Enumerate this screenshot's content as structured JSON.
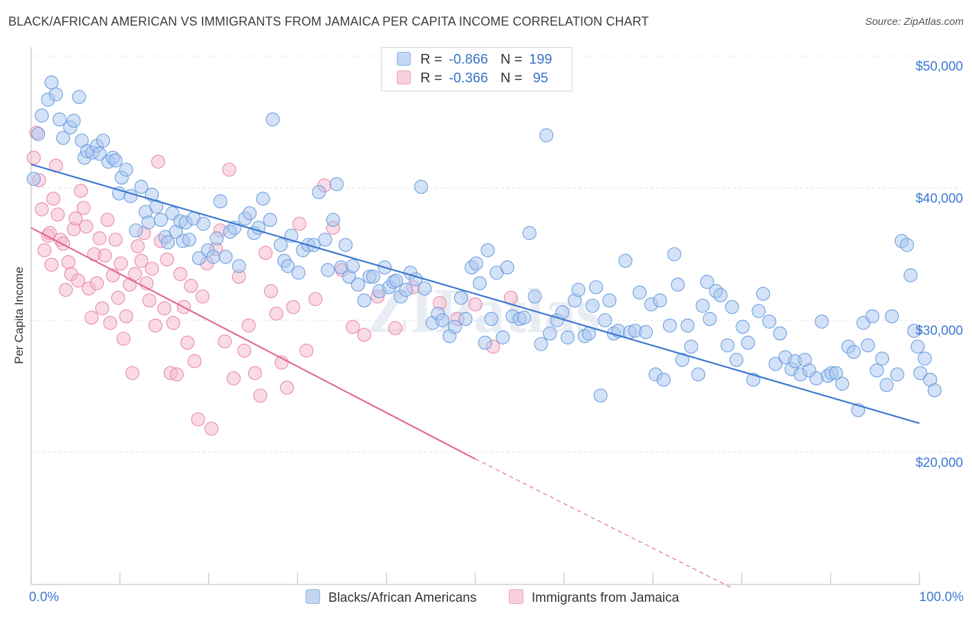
{
  "title": "BLACK/AFRICAN AMERICAN VS IMMIGRANTS FROM JAMAICA PER CAPITA INCOME CORRELATION CHART",
  "source": "Source: ZipAtlas.com",
  "watermark": "ZIPatlas",
  "legend": {
    "rows": [
      {
        "r_label": "R =",
        "r_value": "-0.866",
        "n_label": "N =",
        "n_value": "199",
        "color": "#a9c6ef"
      },
      {
        "r_label": "R =",
        "r_value": "-0.366",
        "n_label": "N =",
        "n_value": " 95",
        "color": "#f6b8cb"
      }
    ]
  },
  "chart_data": {
    "type": "scatter",
    "title": "BLACK/AFRICAN AMERICAN VS IMMIGRANTS FROM JAMAICA PER CAPITA INCOME CORRELATION CHART",
    "xlabel": "",
    "ylabel": "Per Capita Income",
    "xlim": [
      0,
      100
    ],
    "ylim": [
      10000,
      51000
    ],
    "x_tick_labels": [
      "0.0%",
      "100.0%"
    ],
    "y_ticks": [
      20000,
      30000,
      40000,
      50000
    ],
    "y_tick_labels": [
      "$20,000",
      "$30,000",
      "$40,000",
      "$50,000"
    ],
    "grid": true,
    "legend_position": "bottom",
    "series": [
      {
        "name": "Blacks/African Americans",
        "color": "#a9c6ef",
        "edge_color": "#6a9ee0",
        "trend": {
          "x": [
            0,
            100
          ],
          "y": [
            41800,
            22200
          ],
          "color": "#3a77d0"
        },
        "points": [
          [
            0.3,
            40700
          ],
          [
            0.8,
            44100
          ],
          [
            1.2,
            45500
          ],
          [
            1.9,
            46700
          ],
          [
            2.3,
            48000
          ],
          [
            2.8,
            47100
          ],
          [
            3.2,
            45200
          ],
          [
            3.6,
            43800
          ],
          [
            4.4,
            44600
          ],
          [
            4.8,
            45100
          ],
          [
            5.4,
            46900
          ],
          [
            5.7,
            43600
          ],
          [
            6.0,
            42300
          ],
          [
            6.3,
            42800
          ],
          [
            6.9,
            42700
          ],
          [
            7.4,
            43200
          ],
          [
            7.7,
            42600
          ],
          [
            8.1,
            43600
          ],
          [
            8.7,
            42000
          ],
          [
            9.2,
            42300
          ],
          [
            9.5,
            42100
          ],
          [
            9.9,
            39600
          ],
          [
            10.2,
            40800
          ],
          [
            10.7,
            41400
          ],
          [
            11.2,
            39400
          ],
          [
            11.8,
            36800
          ],
          [
            12.4,
            40100
          ],
          [
            12.9,
            38200
          ],
          [
            13.2,
            37400
          ],
          [
            13.6,
            39500
          ],
          [
            14.1,
            38600
          ],
          [
            14.6,
            37600
          ],
          [
            15.1,
            36300
          ],
          [
            15.4,
            35900
          ],
          [
            15.9,
            38100
          ],
          [
            16.3,
            36700
          ],
          [
            16.8,
            37500
          ],
          [
            17.1,
            36000
          ],
          [
            17.4,
            37400
          ],
          [
            17.8,
            36100
          ],
          [
            18.3,
            37700
          ],
          [
            18.9,
            34700
          ],
          [
            19.4,
            37300
          ],
          [
            19.9,
            35300
          ],
          [
            20.5,
            34800
          ],
          [
            20.9,
            36200
          ],
          [
            21.3,
            39000
          ],
          [
            21.9,
            34800
          ],
          [
            22.4,
            36700
          ],
          [
            22.9,
            37000
          ],
          [
            23.4,
            34100
          ],
          [
            24.1,
            37700
          ],
          [
            24.6,
            38100
          ],
          [
            25.1,
            36600
          ],
          [
            25.6,
            37000
          ],
          [
            26.1,
            39200
          ],
          [
            26.9,
            37600
          ],
          [
            27.2,
            45200
          ],
          [
            28.1,
            35700
          ],
          [
            28.5,
            34500
          ],
          [
            28.9,
            34100
          ],
          [
            29.3,
            36400
          ],
          [
            30.1,
            33600
          ],
          [
            30.6,
            35300
          ],
          [
            31.2,
            35700
          ],
          [
            31.8,
            35700
          ],
          [
            32.4,
            39700
          ],
          [
            33.1,
            36100
          ],
          [
            33.4,
            33800
          ],
          [
            34.0,
            37600
          ],
          [
            34.4,
            40300
          ],
          [
            34.9,
            34000
          ],
          [
            35.4,
            35700
          ],
          [
            35.8,
            33300
          ],
          [
            36.2,
            34100
          ],
          [
            36.8,
            32700
          ],
          [
            37.5,
            31500
          ],
          [
            38.1,
            33300
          ],
          [
            38.5,
            33300
          ],
          [
            39.2,
            32200
          ],
          [
            39.8,
            34000
          ],
          [
            40.3,
            32500
          ],
          [
            40.8,
            32900
          ],
          [
            41.1,
            33000
          ],
          [
            41.6,
            31800
          ],
          [
            42.2,
            32300
          ],
          [
            42.7,
            33600
          ],
          [
            43.3,
            33100
          ],
          [
            43.9,
            40100
          ],
          [
            44.3,
            32400
          ],
          [
            45.2,
            29800
          ],
          [
            45.8,
            30500
          ],
          [
            46.3,
            30000
          ],
          [
            47.1,
            28800
          ],
          [
            47.7,
            29500
          ],
          [
            48.4,
            31700
          ],
          [
            48.9,
            30100
          ],
          [
            49.6,
            34000
          ],
          [
            50.1,
            34300
          ],
          [
            50.5,
            32800
          ],
          [
            51.1,
            28300
          ],
          [
            51.4,
            35300
          ],
          [
            51.8,
            30100
          ],
          [
            52.4,
            33600
          ],
          [
            53.1,
            28700
          ],
          [
            53.6,
            34000
          ],
          [
            54.2,
            30300
          ],
          [
            55.0,
            30100
          ],
          [
            55.5,
            30200
          ],
          [
            56.1,
            36600
          ],
          [
            56.7,
            31800
          ],
          [
            57.4,
            28200
          ],
          [
            58.0,
            44000
          ],
          [
            58.4,
            29000
          ],
          [
            59.2,
            30000
          ],
          [
            59.8,
            30600
          ],
          [
            60.4,
            28700
          ],
          [
            61.2,
            31500
          ],
          [
            61.6,
            32300
          ],
          [
            62.3,
            28800
          ],
          [
            62.8,
            29000
          ],
          [
            63.2,
            31100
          ],
          [
            63.6,
            32500
          ],
          [
            64.1,
            24300
          ],
          [
            64.6,
            30000
          ],
          [
            65.1,
            31500
          ],
          [
            65.6,
            29000
          ],
          [
            66.1,
            29200
          ],
          [
            66.9,
            34500
          ],
          [
            67.4,
            29100
          ],
          [
            68.0,
            29200
          ],
          [
            68.5,
            32100
          ],
          [
            69.2,
            29100
          ],
          [
            69.8,
            31200
          ],
          [
            70.3,
            25900
          ],
          [
            70.8,
            31500
          ],
          [
            71.2,
            25500
          ],
          [
            71.9,
            29600
          ],
          [
            72.4,
            35000
          ],
          [
            72.8,
            32700
          ],
          [
            73.3,
            27000
          ],
          [
            73.9,
            29600
          ],
          [
            74.3,
            28000
          ],
          [
            75.1,
            25900
          ],
          [
            75.6,
            31100
          ],
          [
            76.1,
            32900
          ],
          [
            76.4,
            30100
          ],
          [
            77.1,
            32200
          ],
          [
            77.6,
            31900
          ],
          [
            78.4,
            28100
          ],
          [
            78.9,
            31000
          ],
          [
            79.4,
            27000
          ],
          [
            80.1,
            29500
          ],
          [
            80.7,
            28300
          ],
          [
            81.3,
            25500
          ],
          [
            81.9,
            30700
          ],
          [
            82.4,
            32000
          ],
          [
            83.1,
            29900
          ],
          [
            83.8,
            26700
          ],
          [
            84.3,
            29000
          ],
          [
            84.9,
            27200
          ],
          [
            85.6,
            26300
          ],
          [
            86.0,
            26900
          ],
          [
            86.6,
            25900
          ],
          [
            87.1,
            27000
          ],
          [
            87.6,
            26200
          ],
          [
            88.4,
            25600
          ],
          [
            89.0,
            29900
          ],
          [
            89.7,
            25800
          ],
          [
            90.1,
            26000
          ],
          [
            90.6,
            26000
          ],
          [
            91.3,
            25200
          ],
          [
            92.0,
            28000
          ],
          [
            92.6,
            27600
          ],
          [
            93.1,
            23200
          ],
          [
            93.7,
            29800
          ],
          [
            94.2,
            28100
          ],
          [
            94.7,
            30300
          ],
          [
            95.2,
            26200
          ],
          [
            95.8,
            27100
          ],
          [
            96.3,
            25100
          ],
          [
            96.9,
            30300
          ],
          [
            97.5,
            25900
          ],
          [
            98.0,
            36000
          ],
          [
            98.6,
            35700
          ],
          [
            99.0,
            33400
          ],
          [
            99.4,
            29200
          ],
          [
            99.8,
            28000
          ],
          [
            100.1,
            26000
          ],
          [
            100.6,
            27100
          ],
          [
            101.2,
            25500
          ],
          [
            101.7,
            24700
          ]
        ]
      },
      {
        "name": "Immigrants from Jamaica",
        "color": "#f6b8cb",
        "edge_color": "#e889a8",
        "trend": {
          "x": [
            0,
            50
          ],
          "y": [
            37000,
            19500
          ],
          "color": "#e06a93",
          "dashed_to": [
            79,
            9700
          ]
        },
        "points": [
          [
            0.3,
            42300
          ],
          [
            0.6,
            44200
          ],
          [
            0.9,
            40600
          ],
          [
            1.2,
            38400
          ],
          [
            1.5,
            35300
          ],
          [
            1.9,
            36400
          ],
          [
            2.1,
            36600
          ],
          [
            2.3,
            34200
          ],
          [
            2.5,
            39200
          ],
          [
            2.8,
            41700
          ],
          [
            3.0,
            38000
          ],
          [
            3.3,
            36100
          ],
          [
            3.6,
            35800
          ],
          [
            3.9,
            32300
          ],
          [
            4.2,
            34400
          ],
          [
            4.5,
            33500
          ],
          [
            4.8,
            36900
          ],
          [
            5.0,
            37700
          ],
          [
            5.3,
            33000
          ],
          [
            5.6,
            39800
          ],
          [
            5.9,
            38500
          ],
          [
            6.2,
            37100
          ],
          [
            6.5,
            32400
          ],
          [
            6.8,
            30200
          ],
          [
            7.1,
            35000
          ],
          [
            7.4,
            32800
          ],
          [
            7.7,
            36200
          ],
          [
            8.0,
            30900
          ],
          [
            8.3,
            34900
          ],
          [
            8.6,
            37600
          ],
          [
            8.9,
            29800
          ],
          [
            9.2,
            33400
          ],
          [
            9.5,
            36100
          ],
          [
            9.8,
            31700
          ],
          [
            10.1,
            34300
          ],
          [
            10.4,
            28600
          ],
          [
            10.7,
            30300
          ],
          [
            11.1,
            32700
          ],
          [
            11.4,
            26000
          ],
          [
            11.7,
            33500
          ],
          [
            12.0,
            35600
          ],
          [
            12.4,
            34500
          ],
          [
            12.7,
            36600
          ],
          [
            13.0,
            32800
          ],
          [
            13.3,
            31500
          ],
          [
            13.6,
            33900
          ],
          [
            14.0,
            29600
          ],
          [
            14.3,
            42000
          ],
          [
            14.6,
            36000
          ],
          [
            15.0,
            30900
          ],
          [
            15.3,
            34600
          ],
          [
            15.7,
            26000
          ],
          [
            16.0,
            29800
          ],
          [
            16.4,
            25900
          ],
          [
            16.8,
            33500
          ],
          [
            17.2,
            31000
          ],
          [
            17.6,
            28300
          ],
          [
            18.0,
            32600
          ],
          [
            18.4,
            26900
          ],
          [
            18.8,
            22500
          ],
          [
            19.3,
            31800
          ],
          [
            19.8,
            34300
          ],
          [
            20.3,
            21800
          ],
          [
            20.8,
            35400
          ],
          [
            21.3,
            36800
          ],
          [
            21.8,
            28400
          ],
          [
            22.3,
            41400
          ],
          [
            22.8,
            25600
          ],
          [
            23.4,
            33300
          ],
          [
            24.0,
            27700
          ],
          [
            24.5,
            29600
          ],
          [
            25.2,
            26000
          ],
          [
            25.8,
            24300
          ],
          [
            26.4,
            35100
          ],
          [
            27.0,
            32200
          ],
          [
            27.6,
            30500
          ],
          [
            28.2,
            26800
          ],
          [
            28.8,
            24900
          ],
          [
            29.5,
            31000
          ],
          [
            30.2,
            37300
          ],
          [
            31.0,
            27700
          ],
          [
            32.0,
            31600
          ],
          [
            33.0,
            40200
          ],
          [
            34.0,
            37000
          ],
          [
            35.0,
            33800
          ],
          [
            36.2,
            29500
          ],
          [
            37.5,
            28900
          ],
          [
            39.0,
            31800
          ],
          [
            41.0,
            29400
          ],
          [
            43.0,
            32500
          ],
          [
            46.0,
            31300
          ],
          [
            48.0,
            30100
          ],
          [
            50.0,
            31200
          ],
          [
            52.0,
            28000
          ],
          [
            54.0,
            31700
          ]
        ]
      }
    ]
  }
}
